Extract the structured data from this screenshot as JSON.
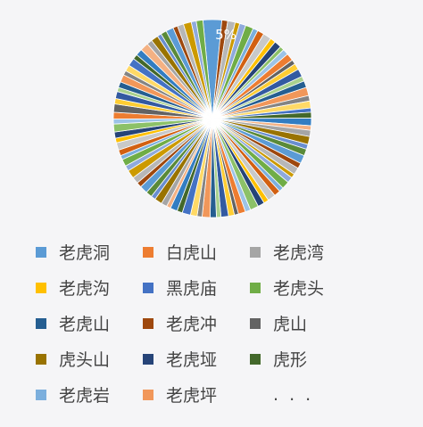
{
  "chart_data": {
    "type": "pie",
    "data_label": "5%",
    "legend_position": "bottom",
    "legend": [
      {
        "name": "老虎洞",
        "color": "#5B9BD5"
      },
      {
        "name": "白虎山",
        "color": "#ED7D31"
      },
      {
        "name": "老虎湾",
        "color": "#A5A5A5"
      },
      {
        "name": "老虎沟",
        "color": "#FFC000"
      },
      {
        "name": "黑虎庙",
        "color": "#4472C4"
      },
      {
        "name": "老虎头",
        "color": "#70AD47"
      },
      {
        "name": "老虎山",
        "color": "#255E91"
      },
      {
        "name": "老虎冲",
        "color": "#9E480E"
      },
      {
        "name": "虎山",
        "color": "#636363"
      },
      {
        "name": "虎头山",
        "color": "#997300"
      },
      {
        "name": "老虎垭",
        "color": "#264478"
      },
      {
        "name": "虎形",
        "color": "#43682B"
      },
      {
        "name": "老虎岩",
        "color": "#7CAFDD"
      },
      {
        "name": "老虎坪",
        "color": "#F1975A"
      }
    ],
    "legend_more": ". . .",
    "extra_colors": [
      "#B7B7B7",
      "#FFCD33",
      "#698ED0",
      "#8CC168",
      "#327DC2",
      "#D26012",
      "#848484",
      "#CC9A00",
      "#335AA1",
      "#5A8A39",
      "#9DC3E6",
      "#F4B183",
      "#C9C9C9",
      "#FFD966",
      "#8FAADC",
      "#A9D18E"
    ]
  }
}
